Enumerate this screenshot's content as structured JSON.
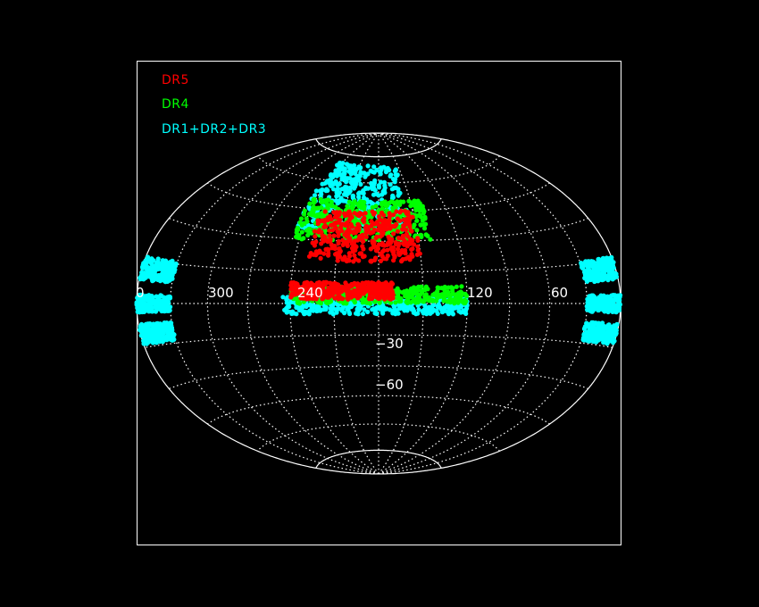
{
  "chart_data": {
    "type": "scatter",
    "projection": "aitoff-hammer",
    "legend": [
      {
        "label": "DR5",
        "color": "#ff0000"
      },
      {
        "label": "DR4",
        "color": "#00ff00"
      },
      {
        "label": "DR1+DR2+DR3",
        "color": "#00ffff"
      }
    ],
    "longitude_ticks": [
      "0",
      "300",
      "240",
      "120",
      "60"
    ],
    "latitude_ticks": [
      "−30",
      "−60"
    ],
    "grid": true,
    "legend_position": "top-left",
    "series": [
      {
        "name": "DR1+DR2+DR3",
        "color": "#00ffff",
        "regions": [
          {
            "lon": [
              155,
              245
            ],
            "lat": [
              35,
              70
            ]
          },
          {
            "lon": [
              120,
              245
            ],
            "lat": [
              -5,
              3
            ]
          },
          {
            "lon": [
              -30,
              30
            ],
            "lat": [
              8,
              16
            ]
          },
          {
            "lon": [
              -30,
              30
            ],
            "lat": [
              -3,
              3
            ]
          },
          {
            "lon": [
              -30,
              30
            ],
            "lat": [
              -14,
              -7
            ]
          }
        ]
      },
      {
        "name": "DR4",
        "color": "#00ff00",
        "regions": [
          {
            "lon": [
              140,
              245
            ],
            "lat": [
              30,
              50
            ]
          },
          {
            "lon": [
              120,
              240
            ],
            "lat": [
              0,
              8
            ]
          }
        ]
      },
      {
        "name": "DR5",
        "color": "#ff0000",
        "regions": [
          {
            "lon": [
              150,
              230
            ],
            "lat": [
              20,
              45
            ]
          },
          {
            "lon": [
              170,
              240
            ],
            "lat": [
              2,
              10
            ]
          }
        ]
      }
    ]
  }
}
